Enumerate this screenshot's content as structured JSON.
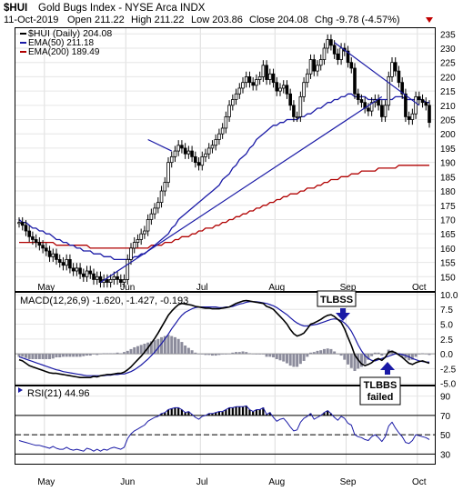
{
  "header": {
    "ticker": "$HUI",
    "name": "Gold Bugs Index - NYSE Arca INDX",
    "date": "11-Oct-2019",
    "open": "Open 211.22",
    "high": "High 211.22",
    "low": "Low 203.86",
    "close": "Close 204.08",
    "chg": "Chg -9.78 (-4.57%)"
  },
  "legend": {
    "price": "$HUI (Daily) 204.08",
    "ema50": "EMA(50) 211.18",
    "ema200": "EMA(200) 189.49"
  },
  "macd_label": "MACD(12,26,9) -1.620, -1.427, -0.193",
  "rsi_label": "RSI(21) 44.96",
  "annotations": {
    "tlbss": "TLBSS",
    "tlbbs": "TLBBS",
    "failed": "failed"
  },
  "colors": {
    "price": "#000000",
    "ema50": "#1a1aa6",
    "ema200": "#b00000",
    "macd": "#000000",
    "signal": "#1a1aa6",
    "histogram": "#8c8c9c",
    "rsi": "#1a1aa6",
    "up_arrow_marker": "#1a1aa6",
    "chg_marker": "#c00000"
  },
  "chart_data": [
    {
      "type": "line",
      "title": "$HUI (Daily)",
      "y_axis": {
        "range": [
          145,
          237
        ],
        "ticks": [
          150,
          155,
          160,
          165,
          170,
          175,
          180,
          185,
          190,
          195,
          200,
          205,
          210,
          215,
          220,
          225,
          230,
          235
        ],
        "side": "right"
      },
      "x_axis": {
        "months": [
          "May",
          "Jun",
          "Jul",
          "Aug",
          "Sep",
          "Oct"
        ]
      },
      "series": [
        {
          "name": "$HUI (Daily)",
          "values": [
            169,
            168,
            166,
            164,
            163,
            162,
            161,
            160,
            159,
            157,
            158,
            156,
            155,
            154,
            156,
            153,
            152,
            153,
            151,
            150,
            152,
            151,
            149,
            150,
            148,
            149,
            148,
            149,
            150,
            149,
            148,
            149,
            156,
            160,
            162,
            163,
            165,
            166,
            170,
            172,
            174,
            176,
            180,
            183,
            190,
            192,
            194,
            196,
            195,
            193,
            194,
            192,
            190,
            189,
            192,
            193,
            195,
            196,
            198,
            200,
            202,
            206,
            210,
            212,
            214,
            216,
            218,
            220,
            218,
            217,
            219,
            220,
            224,
            219,
            221,
            218,
            215,
            216,
            217,
            214,
            210,
            206,
            206,
            213,
            218,
            221,
            226,
            222,
            224,
            226,
            230,
            233,
            231,
            228,
            226,
            230,
            229,
            225,
            223,
            214,
            212,
            211,
            209,
            208,
            211,
            212,
            210,
            206,
            210,
            220,
            225,
            222,
            218,
            214,
            206,
            205,
            207,
            213,
            212,
            211,
            210,
            204
          ]
        },
        {
          "name": "EMA(50)",
          "values": [
            170,
            169,
            169,
            168,
            167,
            167,
            166,
            166,
            165,
            165,
            164,
            163,
            163,
            162,
            162,
            161,
            161,
            160,
            160,
            159,
            159,
            159,
            158,
            158,
            158,
            157,
            157,
            157,
            156,
            156,
            156,
            156,
            156,
            156,
            157,
            157,
            158,
            158,
            159,
            160,
            161,
            162,
            163,
            164,
            165,
            167,
            168,
            170,
            171,
            172,
            173,
            174,
            175,
            176,
            177,
            178,
            179,
            180,
            181,
            182,
            184,
            185,
            186,
            188,
            189,
            191,
            192,
            193,
            195,
            196,
            198,
            199,
            200,
            201,
            202,
            203,
            203,
            204,
            204,
            205,
            205,
            205,
            205,
            206,
            206,
            207,
            207,
            208,
            209,
            209,
            210,
            211,
            211,
            212,
            212,
            213,
            213,
            214,
            214,
            213,
            213,
            213,
            213,
            212,
            212,
            212,
            212,
            212,
            212,
            212,
            212,
            213,
            213,
            213,
            212,
            212,
            212,
            212,
            212,
            212,
            211,
            211
          ]
        },
        {
          "name": "EMA(200)",
          "values": [
            162,
            162,
            162,
            162,
            162,
            162,
            162,
            162,
            162,
            162,
            162,
            161,
            161,
            161,
            161,
            161,
            161,
            161,
            161,
            161,
            161,
            160,
            160,
            160,
            160,
            160,
            160,
            160,
            160,
            160,
            160,
            160,
            160,
            160,
            160,
            160,
            160,
            160,
            160,
            161,
            161,
            161,
            161,
            162,
            162,
            162,
            163,
            163,
            164,
            164,
            164,
            165,
            165,
            166,
            166,
            167,
            167,
            167,
            168,
            168,
            169,
            169,
            170,
            170,
            171,
            171,
            172,
            172,
            173,
            173,
            174,
            174,
            175,
            175,
            176,
            176,
            177,
            177,
            178,
            178,
            179,
            179,
            179,
            180,
            180,
            181,
            181,
            181,
            182,
            182,
            183,
            183,
            184,
            184,
            184,
            185,
            185,
            185,
            186,
            186,
            186,
            187,
            187,
            187,
            187,
            187,
            188,
            188,
            188,
            188,
            188,
            188,
            189,
            189,
            189,
            189,
            189,
            189,
            189,
            189,
            189,
            189
          ]
        }
      ],
      "trendlines": [
        {
          "from": [
            24,
            148
          ],
          "to": [
            107,
            213
          ]
        },
        {
          "from": [
            38,
            198
          ],
          "to": [
            45,
            194
          ]
        },
        {
          "from": [
            93,
            232
          ],
          "to": [
            118,
            210
          ]
        }
      ]
    },
    {
      "type": "line",
      "title": "MACD(12,26,9)",
      "y_axis": {
        "range": [
          -5.2,
          10.3
        ],
        "ticks": [
          -5.0,
          -2.5,
          0.0,
          2.5,
          5.0,
          7.5,
          10.0
        ],
        "side": "right"
      },
      "series": [
        {
          "name": "MACD",
          "values": [
            -1.0,
            -1.2,
            -1.6,
            -2.0,
            -2.2,
            -2.4,
            -2.6,
            -2.8,
            -3.0,
            -3.2,
            -3.3,
            -3.3,
            -3.4,
            -3.5,
            -3.6,
            -3.7,
            -3.8,
            -3.9,
            -4.0,
            -4.0,
            -4.0,
            -4.0,
            -3.8,
            -3.9,
            -3.7,
            -3.6,
            -3.5,
            -3.5,
            -3.4,
            -3.3,
            -3.3,
            -3.1,
            -2.7,
            -2.2,
            -1.6,
            -1.0,
            -0.4,
            0.3,
            1.0,
            1.8,
            2.6,
            3.5,
            4.5,
            5.5,
            6.5,
            7.2,
            7.8,
            8.3,
            8.5,
            8.4,
            8.3,
            8.2,
            8.0,
            7.9,
            7.8,
            7.7,
            7.7,
            7.6,
            7.6,
            7.6,
            7.7,
            7.8,
            7.9,
            8.2,
            8.5,
            8.7,
            8.9,
            9.0,
            8.9,
            8.8,
            8.7,
            8.6,
            8.5,
            8.0,
            7.8,
            7.5,
            6.9,
            6.3,
            5.7,
            5.0,
            4.1,
            3.4,
            3.0,
            3.2,
            3.5,
            4.2,
            5.0,
            5.2,
            5.5,
            5.8,
            6.2,
            6.5,
            6.6,
            6.3,
            5.8,
            5.3,
            4.2,
            2.8,
            1.4,
            -0.2,
            -1.0,
            -1.7,
            -2.0,
            -1.8,
            -1.5,
            -1.0,
            -0.8,
            -1.1,
            -0.6,
            0.3,
            0.4,
            0.2,
            -0.2,
            -0.6,
            -1.1,
            -1.6,
            -1.8,
            -1.5,
            -1.3,
            -1.2,
            -1.4,
            -1.6
          ]
        },
        {
          "name": "Signal",
          "values": [
            -0.5,
            -0.7,
            -0.9,
            -1.1,
            -1.3,
            -1.5,
            -1.7,
            -1.9,
            -2.1,
            -2.3,
            -2.5,
            -2.7,
            -2.8,
            -3.0,
            -3.1,
            -3.2,
            -3.3,
            -3.4,
            -3.5,
            -3.6,
            -3.7,
            -3.7,
            -3.7,
            -3.7,
            -3.7,
            -3.7,
            -3.6,
            -3.6,
            -3.5,
            -3.5,
            -3.4,
            -3.4,
            -3.2,
            -3.0,
            -2.7,
            -2.3,
            -1.9,
            -1.4,
            -0.9,
            -0.3,
            0.3,
            1.0,
            1.7,
            2.5,
            3.3,
            4.2,
            5.0,
            5.8,
            6.5,
            7.0,
            7.3,
            7.6,
            7.8,
            7.9,
            7.9,
            7.9,
            7.9,
            7.9,
            7.9,
            7.8,
            7.8,
            7.9,
            7.9,
            8.0,
            8.2,
            8.4,
            8.5,
            8.7,
            8.8,
            8.8,
            8.8,
            8.7,
            8.6,
            8.5,
            8.3,
            8.1,
            7.8,
            7.4,
            7.0,
            6.6,
            6.1,
            5.6,
            5.2,
            4.9,
            4.7,
            4.7,
            4.8,
            4.9,
            5.0,
            5.2,
            5.4,
            5.6,
            5.8,
            5.9,
            5.8,
            5.6,
            5.2,
            4.6,
            3.8,
            2.7,
            1.5,
            0.5,
            -0.3,
            -0.8,
            -1.1,
            -1.2,
            -1.0,
            -0.8,
            -0.6,
            -0.4,
            -0.2,
            0.0,
            0.0,
            -0.1,
            -0.3,
            -0.5,
            -0.8,
            -1.0,
            -1.2,
            -1.3,
            -1.4,
            -1.4
          ]
        },
        {
          "name": "Histogram",
          "values": [
            -0.5,
            -0.5,
            -0.7,
            -0.9,
            -0.9,
            -0.9,
            -0.9,
            -0.9,
            -0.9,
            -0.9,
            -0.8,
            -0.6,
            -0.6,
            -0.5,
            -0.5,
            -0.5,
            -0.5,
            -0.5,
            -0.5,
            -0.4,
            -0.3,
            -0.3,
            -0.1,
            -0.2,
            0.0,
            0.1,
            0.1,
            0.1,
            0.1,
            0.2,
            0.1,
            0.3,
            0.5,
            0.8,
            1.1,
            1.3,
            1.5,
            1.7,
            1.9,
            2.1,
            2.3,
            2.5,
            2.8,
            3.0,
            3.2,
            3.0,
            2.8,
            2.5,
            2.0,
            1.4,
            1.0,
            0.6,
            0.2,
            0.0,
            -0.1,
            -0.2,
            -0.2,
            -0.3,
            -0.3,
            -0.2,
            -0.1,
            -0.1,
            0.0,
            0.2,
            0.3,
            0.3,
            0.4,
            0.3,
            0.1,
            0.0,
            -0.1,
            -0.1,
            -0.1,
            -0.5,
            -0.5,
            -0.6,
            -0.9,
            -1.1,
            -1.3,
            -1.6,
            -2.0,
            -2.2,
            -2.2,
            -1.7,
            -1.2,
            -0.5,
            0.2,
            0.3,
            0.5,
            0.6,
            0.8,
            0.9,
            0.8,
            0.4,
            0.0,
            -0.3,
            -1.0,
            -1.8,
            -2.4,
            -2.9,
            -2.5,
            -2.2,
            -1.7,
            -1.0,
            -0.4,
            0.2,
            0.2,
            -0.3,
            0.0,
            0.7,
            0.6,
            0.2,
            -0.2,
            -0.5,
            -0.8,
            -1.1,
            -1.0,
            -0.5,
            -0.1,
            0.1,
            0.0,
            -0.2
          ]
        }
      ]
    },
    {
      "type": "line",
      "title": "RSI(21)",
      "y_axis": {
        "range": [
          20,
          100
        ],
        "ticks": [
          30,
          50,
          70,
          90
        ],
        "side": "right",
        "reference_lines": [
          30,
          50,
          70
        ]
      },
      "series": [
        {
          "name": "RSI(21)",
          "values": [
            44,
            43,
            42,
            41,
            40,
            39,
            39,
            38,
            37,
            36,
            38,
            36,
            35,
            35,
            37,
            35,
            34,
            35,
            34,
            33,
            36,
            35,
            33,
            35,
            33,
            35,
            34,
            36,
            37,
            36,
            35,
            37,
            46,
            51,
            54,
            56,
            58,
            60,
            64,
            66,
            68,
            69,
            72,
            73,
            76,
            77,
            78,
            78,
            76,
            73,
            74,
            71,
            68,
            66,
            69,
            70,
            72,
            72,
            73,
            74,
            74,
            76,
            78,
            78,
            79,
            79,
            79,
            80,
            76,
            74,
            76,
            76,
            78,
            71,
            73,
            68,
            64,
            66,
            67,
            63,
            58,
            54,
            55,
            63,
            67,
            69,
            72,
            66,
            68,
            70,
            73,
            75,
            72,
            68,
            65,
            69,
            67,
            62,
            60,
            50,
            48,
            47,
            45,
            44,
            48,
            50,
            47,
            43,
            48,
            59,
            63,
            57,
            52,
            48,
            42,
            41,
            44,
            50,
            49,
            48,
            47,
            45
          ]
        }
      ]
    }
  ]
}
